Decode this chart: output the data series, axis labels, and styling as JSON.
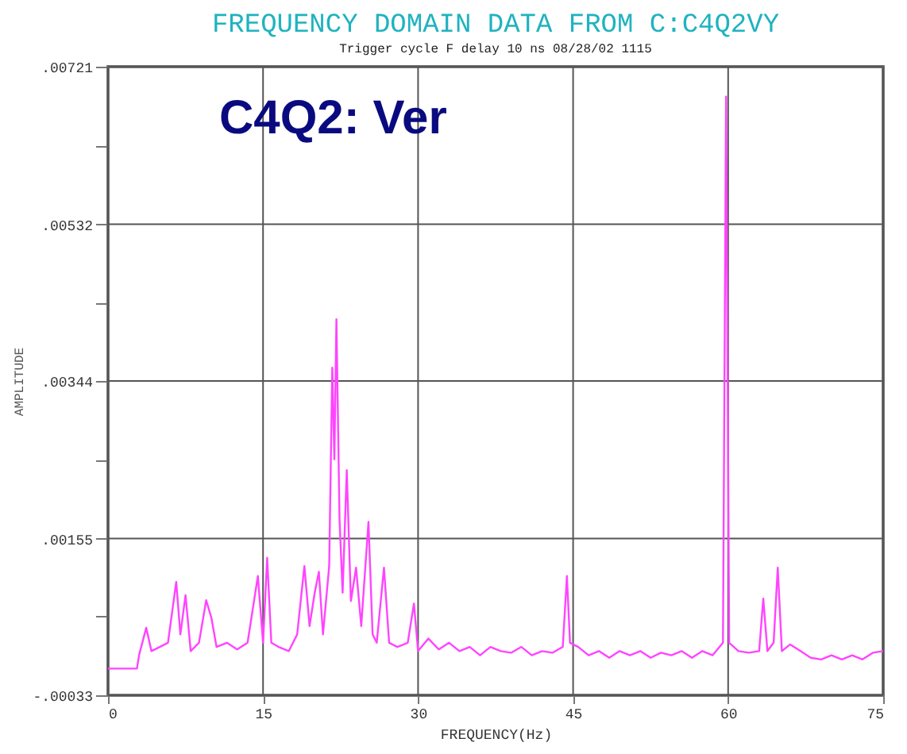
{
  "chart_data": {
    "type": "line",
    "title": "FREQUENCY DOMAIN DATA FROM  C:C4Q2VY",
    "subtitle": "Trigger cycle  F delay   10 ns  08/28/02  1115",
    "xlabel": "FREQUENCY(Hz)",
    "ylabel": "AMPLITUDE",
    "annotations": [
      "C4Q2: Ver"
    ],
    "series": [
      {
        "color": "#ff44ff",
        "x": [
          0,
          2.8,
          3.0,
          3.7,
          4.2,
          5,
          5.8,
          6.6,
          7.0,
          7.5,
          8.0,
          8.8,
          9.5,
          10.0,
          10.5,
          11.5,
          12.5,
          13.5,
          14.5,
          15.0,
          15.4,
          15.8,
          16.5,
          17.5,
          18.3,
          19.0,
          19.5,
          20.0,
          20.4,
          20.8,
          21.4,
          21.7,
          21.9,
          22.1,
          22.4,
          22.7,
          23.1,
          23.5,
          24.0,
          24.5,
          25.2,
          25.6,
          26.0,
          26.7,
          27.2,
          28,
          29,
          29.6,
          30,
          31,
          32,
          33,
          34,
          35,
          36,
          37,
          38,
          39,
          40,
          41,
          42,
          43,
          44,
          44.4,
          44.7,
          45.5,
          46.5,
          47.5,
          48.5,
          49.5,
          50.5,
          51.5,
          52.5,
          53.5,
          54.5,
          55.5,
          56.5,
          57.5,
          58.5,
          59.5,
          59.8,
          60.1,
          61,
          62,
          63,
          63.4,
          63.8,
          64.4,
          64.8,
          65.2,
          66,
          67,
          68,
          69,
          70,
          71,
          72,
          73,
          74,
          75
        ],
        "values": [
          -1e-05,
          -1e-05,
          0.00015,
          0.00048,
          0.0002,
          0.00025,
          0.0003,
          0.00103,
          0.0004,
          0.00087,
          0.0002,
          0.0003,
          0.00081,
          0.0006,
          0.00025,
          0.0003,
          0.00022,
          0.0003,
          0.0011,
          0.0003,
          0.00132,
          0.0003,
          0.00025,
          0.0002,
          0.0004,
          0.00122,
          0.0005,
          0.0009,
          0.00115,
          0.0004,
          0.00122,
          0.0036,
          0.0025,
          0.00418,
          0.00178,
          0.0009,
          0.00237,
          0.0008,
          0.0012,
          0.0005,
          0.00175,
          0.0004,
          0.0003,
          0.0012,
          0.0003,
          0.00025,
          0.0003,
          0.00077,
          0.0002,
          0.00035,
          0.00022,
          0.0003,
          0.0002,
          0.00025,
          0.00015,
          0.00025,
          0.0002,
          0.00018,
          0.00025,
          0.00015,
          0.0002,
          0.00018,
          0.00025,
          0.0011,
          0.0003,
          0.00025,
          0.00015,
          0.0002,
          0.00012,
          0.0002,
          0.00015,
          0.0002,
          0.00012,
          0.00018,
          0.00015,
          0.0002,
          0.00012,
          0.0002,
          0.00015,
          0.0003,
          0.00685,
          0.0003,
          0.0002,
          0.00018,
          0.0002,
          0.00083,
          0.0002,
          0.0003,
          0.0012,
          0.0002,
          0.00028,
          0.0002,
          0.00012,
          0.0001,
          0.00015,
          0.0001,
          0.00015,
          0.0001,
          0.00018,
          0.0002
        ]
      }
    ],
    "xlim": [
      0,
      75
    ],
    "xticks": [
      0,
      15,
      30,
      45,
      60,
      75
    ],
    "ylim": [
      -0.00033,
      0.00721
    ],
    "yticks": [
      {
        "value": -0.00033,
        "label": "-.00033"
      },
      {
        "value": 0.000615,
        "label": null
      },
      {
        "value": 0.00155,
        "label": ".00155"
      },
      {
        "value": 0.002495,
        "label": null
      },
      {
        "value": 0.00344,
        "label": ".00344"
      },
      {
        "value": 0.00438,
        "label": null
      },
      {
        "value": 0.00532,
        "label": ".00532"
      },
      {
        "value": 0.006265,
        "label": null
      },
      {
        "value": 0.00721,
        "label": ".00721"
      }
    ],
    "grid": true,
    "marker": "none",
    "line_style": "solid"
  }
}
